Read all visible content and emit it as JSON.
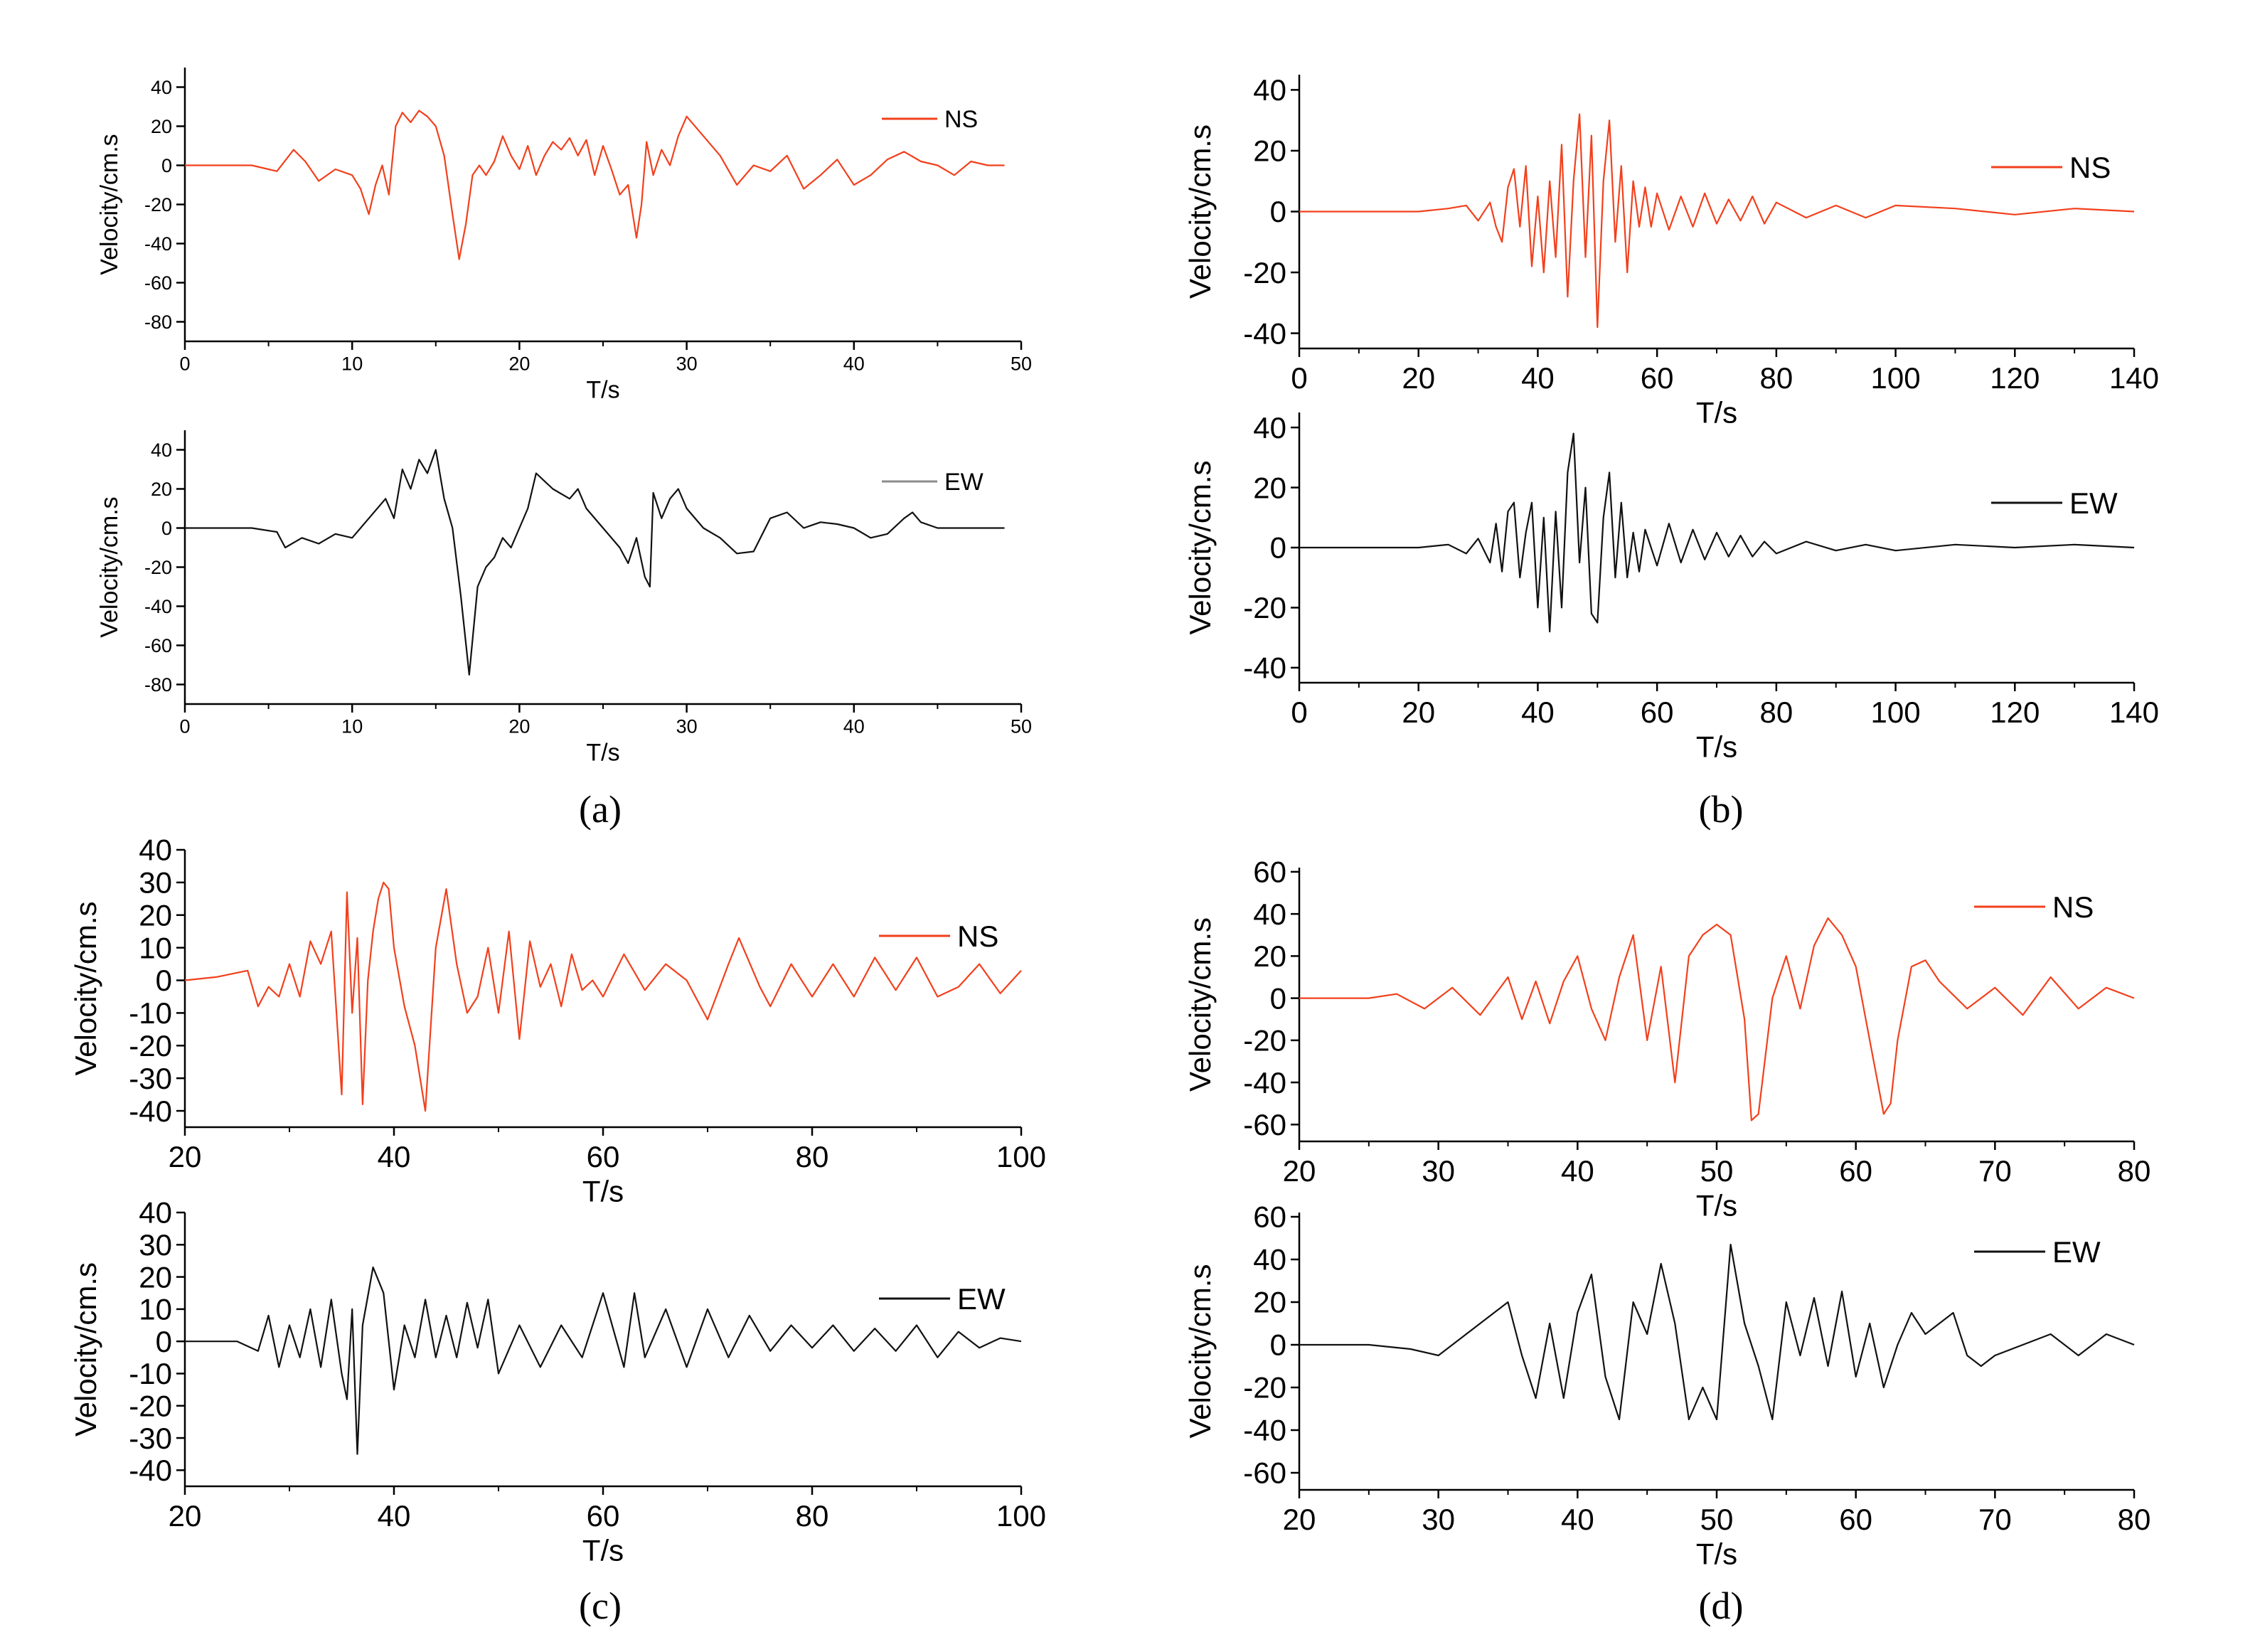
{
  "colors": {
    "ns": "#f2401c",
    "ew": "#111111",
    "axis": "#000000",
    "legend_a_ew": "#8c8c8c"
  },
  "chart_data": [
    {
      "id": "a-ns",
      "panel": "(a)",
      "type": "line",
      "xlabel": "T/s",
      "ylabel": "Velocity/cm.s",
      "xlim": [
        0,
        50
      ],
      "ylim": [
        -90,
        50
      ],
      "xticks": [
        0,
        10,
        20,
        30,
        40,
        50
      ],
      "yticks": [
        40,
        20,
        0,
        -20,
        -40,
        -60,
        -80
      ],
      "grid": false,
      "legend_position": "top-right",
      "series": [
        {
          "name": "NS",
          "color": "#f2401c",
          "x": [
            0,
            4,
            5.5,
            6.5,
            7.2,
            8,
            9,
            10,
            10.5,
            11,
            11.4,
            11.8,
            12.2,
            12.6,
            13,
            13.5,
            14,
            14.5,
            15,
            15.5,
            16,
            16.4,
            16.8,
            17.2,
            17.6,
            18,
            18.5,
            19,
            19.5,
            20,
            20.5,
            21,
            21.5,
            22,
            22.5,
            23,
            23.5,
            24,
            24.5,
            25,
            25.5,
            26,
            26.5,
            27,
            27.3,
            27.6,
            28,
            28.5,
            29,
            29.5,
            30,
            31,
            32,
            33,
            34,
            35,
            36,
            37,
            38,
            39,
            40,
            41,
            42,
            43,
            44,
            45,
            46,
            47,
            48,
            49
          ],
          "values": [
            0,
            0,
            -3,
            8,
            2,
            -8,
            -2,
            -5,
            -12,
            -25,
            -10,
            0,
            -15,
            20,
            27,
            22,
            28,
            25,
            20,
            5,
            -25,
            -48,
            -30,
            -5,
            0,
            -5,
            2,
            15,
            5,
            -2,
            10,
            -5,
            5,
            12,
            8,
            14,
            5,
            13,
            -5,
            10,
            -2,
            -15,
            -10,
            -37,
            -20,
            12,
            -5,
            8,
            0,
            15,
            25,
            15,
            5,
            -10,
            0,
            -3,
            5,
            -12,
            -5,
            3,
            -10,
            -5,
            3,
            7,
            2,
            0,
            -5,
            2,
            0,
            0
          ]
        }
      ]
    },
    {
      "id": "a-ew",
      "panel": "(a)",
      "type": "line",
      "xlabel": "T/s",
      "ylabel": "Velocity/cm.s",
      "xlim": [
        0,
        50
      ],
      "ylim": [
        -90,
        50
      ],
      "xticks": [
        0,
        10,
        20,
        30,
        40,
        50
      ],
      "yticks": [
        40,
        20,
        0,
        -20,
        -40,
        -60,
        -80
      ],
      "grid": false,
      "legend_position": "top-right",
      "series": [
        {
          "name": "EW",
          "color": "#111111",
          "x": [
            0,
            4,
            5.5,
            6,
            7,
            8,
            9,
            10,
            11,
            12,
            12.5,
            13,
            13.5,
            14,
            14.5,
            15,
            15.5,
            16,
            16.5,
            17,
            17.5,
            18,
            18.5,
            19,
            19.5,
            20,
            20.5,
            21,
            22,
            23,
            23.5,
            24,
            25,
            26,
            26.5,
            27,
            27.5,
            27.8,
            28,
            28.5,
            29,
            29.5,
            30,
            31,
            32,
            33,
            34,
            35,
            36,
            37,
            38,
            39,
            40,
            41,
            42,
            43,
            43.5,
            44,
            45,
            46,
            47,
            48,
            49
          ],
          "values": [
            0,
            0,
            -2,
            -10,
            -5,
            -8,
            -3,
            -5,
            5,
            15,
            5,
            30,
            20,
            35,
            28,
            40,
            15,
            0,
            -35,
            -75,
            -30,
            -20,
            -15,
            -5,
            -10,
            0,
            10,
            28,
            20,
            15,
            20,
            10,
            0,
            -10,
            -18,
            -5,
            -25,
            -30,
            18,
            5,
            15,
            20,
            10,
            0,
            -5,
            -13,
            -12,
            5,
            8,
            0,
            3,
            2,
            0,
            -5,
            -3,
            5,
            8,
            3,
            0,
            0,
            0,
            0,
            0
          ]
        }
      ]
    },
    {
      "id": "b-ns",
      "panel": "(b)",
      "type": "line",
      "xlabel": "T/s",
      "ylabel": "Velocity/cm.s",
      "xlim": [
        0,
        140
      ],
      "ylim": [
        -45,
        45
      ],
      "xticks": [
        0,
        20,
        40,
        60,
        80,
        100,
        120,
        140
      ],
      "yticks": [
        40,
        20,
        0,
        -20,
        -40
      ],
      "grid": false,
      "legend_position": "top-right",
      "series": [
        {
          "name": "NS",
          "color": "#f2401c",
          "x": [
            0,
            20,
            25,
            28,
            30,
            32,
            33,
            34,
            35,
            36,
            37,
            38,
            39,
            40,
            41,
            42,
            43,
            44,
            45,
            46,
            47,
            48,
            49,
            50,
            51,
            52,
            53,
            54,
            55,
            56,
            57,
            58,
            59,
            60,
            62,
            64,
            66,
            68,
            70,
            72,
            74,
            76,
            78,
            80,
            85,
            90,
            95,
            100,
            110,
            120,
            130,
            140
          ],
          "values": [
            0,
            0,
            1,
            2,
            -3,
            3,
            -5,
            -10,
            8,
            14,
            -5,
            15,
            -18,
            5,
            -20,
            10,
            -15,
            22,
            -28,
            10,
            32,
            -15,
            25,
            -38,
            10,
            30,
            -10,
            15,
            -20,
            10,
            -5,
            8,
            -5,
            6,
            -6,
            5,
            -5,
            6,
            -4,
            4,
            -3,
            5,
            -4,
            3,
            -2,
            2,
            -2,
            2,
            1,
            -1,
            1,
            0
          ]
        }
      ]
    },
    {
      "id": "b-ew",
      "panel": "(b)",
      "type": "line",
      "xlabel": "T/s",
      "ylabel": "Velocity/cm.s",
      "xlim": [
        0,
        140
      ],
      "ylim": [
        -45,
        45
      ],
      "xticks": [
        0,
        20,
        40,
        60,
        80,
        100,
        120,
        140
      ],
      "yticks": [
        40,
        20,
        0,
        -20,
        -40
      ],
      "grid": false,
      "legend_position": "top-right",
      "series": [
        {
          "name": "EW",
          "color": "#111111",
          "x": [
            0,
            20,
            25,
            28,
            30,
            32,
            33,
            34,
            35,
            36,
            37,
            38,
            39,
            40,
            41,
            42,
            43,
            44,
            45,
            46,
            47,
            48,
            49,
            50,
            51,
            52,
            53,
            54,
            55,
            56,
            57,
            58,
            60,
            62,
            64,
            66,
            68,
            70,
            72,
            74,
            76,
            78,
            80,
            85,
            90,
            95,
            100,
            110,
            120,
            130,
            140
          ],
          "values": [
            0,
            0,
            1,
            -2,
            3,
            -5,
            8,
            -8,
            12,
            15,
            -10,
            5,
            15,
            -20,
            10,
            -28,
            12,
            -20,
            25,
            38,
            -5,
            20,
            -22,
            -25,
            10,
            25,
            -10,
            15,
            -10,
            5,
            -8,
            6,
            -6,
            8,
            -5,
            6,
            -4,
            5,
            -3,
            4,
            -3,
            2,
            -2,
            2,
            -1,
            1,
            -1,
            1,
            0,
            1,
            0
          ]
        }
      ]
    },
    {
      "id": "c-ns",
      "panel": "(c)",
      "type": "line",
      "xlabel": "T/s",
      "ylabel": "Velocity/cm.s",
      "xlim": [
        20,
        100
      ],
      "ylim": [
        -45,
        40
      ],
      "xticks": [
        20,
        40,
        60,
        80,
        100
      ],
      "yticks": [
        40,
        30,
        20,
        10,
        0,
        -10,
        -20,
        -30,
        -40
      ],
      "grid": false,
      "legend_position": "top-right",
      "series": [
        {
          "name": "NS",
          "color": "#f2401c",
          "x": [
            20,
            23,
            26,
            27,
            28,
            29,
            30,
            31,
            32,
            33,
            34,
            35,
            35.5,
            36,
            36.5,
            37,
            37.5,
            38,
            38.5,
            39,
            39.5,
            40,
            41,
            42,
            43,
            44,
            45,
            46,
            47,
            48,
            49,
            50,
            51,
            52,
            53,
            54,
            55,
            56,
            57,
            58,
            59,
            60,
            62,
            64,
            66,
            68,
            70,
            72,
            73,
            75,
            76,
            78,
            80,
            82,
            84,
            86,
            88,
            90,
            92,
            94,
            96,
            98,
            100
          ],
          "values": [
            0,
            1,
            3,
            -8,
            -2,
            -5,
            5,
            -5,
            12,
            5,
            15,
            -35,
            27,
            -10,
            13,
            -38,
            0,
            15,
            25,
            30,
            28,
            10,
            -8,
            -20,
            -40,
            10,
            28,
            5,
            -10,
            -5,
            10,
            -10,
            15,
            -18,
            12,
            -2,
            5,
            -8,
            8,
            -3,
            0,
            -5,
            8,
            -3,
            5,
            0,
            -12,
            5,
            13,
            -2,
            -8,
            5,
            -5,
            5,
            -5,
            7,
            -3,
            7,
            -5,
            -2,
            5,
            -4,
            3
          ]
        }
      ]
    },
    {
      "id": "c-ew",
      "panel": "(c)",
      "type": "line",
      "xlabel": "T/s",
      "ylabel": "Velocity/cm.s",
      "xlim": [
        20,
        100
      ],
      "ylim": [
        -45,
        40
      ],
      "xticks": [
        20,
        40,
        60,
        80,
        100
      ],
      "yticks": [
        40,
        30,
        20,
        10,
        0,
        -10,
        -20,
        -30,
        -40
      ],
      "grid": false,
      "legend_position": "top-right",
      "series": [
        {
          "name": "EW",
          "color": "#111111",
          "x": [
            20,
            25,
            27,
            28,
            29,
            30,
            31,
            32,
            33,
            34,
            35,
            35.5,
            36,
            36.5,
            37,
            38,
            39,
            40,
            41,
            42,
            43,
            44,
            45,
            46,
            47,
            48,
            49,
            50,
            52,
            54,
            56,
            58,
            60,
            62,
            63,
            64,
            66,
            68,
            70,
            72,
            74,
            76,
            78,
            80,
            82,
            84,
            86,
            88,
            90,
            92,
            94,
            96,
            98,
            100
          ],
          "values": [
            0,
            0,
            -3,
            8,
            -8,
            5,
            -5,
            10,
            -8,
            13,
            -10,
            -18,
            10,
            -35,
            5,
            23,
            15,
            -15,
            5,
            -5,
            13,
            -5,
            8,
            -5,
            12,
            -2,
            13,
            -10,
            5,
            -8,
            5,
            -5,
            15,
            -8,
            15,
            -5,
            10,
            -8,
            10,
            -5,
            8,
            -3,
            5,
            -2,
            5,
            -3,
            4,
            -3,
            5,
            -5,
            3,
            -2,
            1,
            0
          ]
        }
      ]
    },
    {
      "id": "d-ns",
      "panel": "(d)",
      "type": "line",
      "xlabel": "T/s",
      "ylabel": "Velocity/cm.s",
      "xlim": [
        20,
        80
      ],
      "ylim": [
        -68,
        62
      ],
      "xticks": [
        20,
        30,
        40,
        50,
        60,
        70,
        80
      ],
      "yticks": [
        60,
        40,
        20,
        0,
        -20,
        -40,
        -60
      ],
      "grid": false,
      "legend_position": "top-right",
      "series": [
        {
          "name": "NS",
          "color": "#f2401c",
          "x": [
            20,
            25,
            27,
            29,
            31,
            33,
            35,
            36,
            37,
            38,
            39,
            40,
            41,
            42,
            43,
            44,
            45,
            46,
            47,
            48,
            49,
            50,
            51,
            52,
            52.5,
            53,
            54,
            55,
            56,
            57,
            58,
            59,
            60,
            61,
            62,
            62.5,
            63,
            64,
            65,
            66,
            68,
            70,
            72,
            74,
            76,
            78,
            80
          ],
          "values": [
            0,
            0,
            2,
            -5,
            5,
            -8,
            10,
            -10,
            8,
            -12,
            8,
            20,
            -5,
            -20,
            10,
            30,
            -20,
            15,
            -40,
            20,
            30,
            35,
            30,
            -10,
            -58,
            -55,
            0,
            20,
            -5,
            25,
            38,
            30,
            15,
            -20,
            -55,
            -50,
            -20,
            15,
            18,
            8,
            -5,
            5,
            -8,
            10,
            -5,
            5,
            0
          ]
        }
      ]
    },
    {
      "id": "d-ew",
      "panel": "(d)",
      "type": "line",
      "xlabel": "T/s",
      "ylabel": "Velocity/cm.s",
      "xlim": [
        20,
        80
      ],
      "ylim": [
        -68,
        62
      ],
      "xticks": [
        20,
        30,
        40,
        50,
        60,
        70,
        80
      ],
      "yticks": [
        60,
        40,
        20,
        0,
        -20,
        -40,
        -60
      ],
      "grid": false,
      "legend_position": "top-right",
      "series": [
        {
          "name": "EW",
          "color": "#111111",
          "x": [
            20,
            25,
            28,
            30,
            32,
            34,
            35,
            36,
            37,
            38,
            39,
            40,
            41,
            42,
            43,
            44,
            45,
            46,
            47,
            48,
            49,
            50,
            51,
            52,
            53,
            54,
            55,
            56,
            57,
            58,
            59,
            60,
            61,
            62,
            63,
            64,
            65,
            66,
            67,
            68,
            69,
            70,
            72,
            74,
            76,
            78,
            80
          ],
          "values": [
            0,
            0,
            -2,
            -5,
            5,
            15,
            20,
            -5,
            -25,
            10,
            -25,
            15,
            33,
            -15,
            -35,
            20,
            5,
            38,
            10,
            -35,
            -20,
            -35,
            47,
            10,
            -10,
            -35,
            20,
            -5,
            22,
            -10,
            25,
            -15,
            10,
            -20,
            0,
            15,
            5,
            10,
            15,
            -5,
            -10,
            -5,
            0,
            5,
            -5,
            5,
            0
          ]
        }
      ]
    }
  ],
  "panel_captions": [
    "(a)",
    "(b)",
    "(c)",
    "(d)"
  ]
}
